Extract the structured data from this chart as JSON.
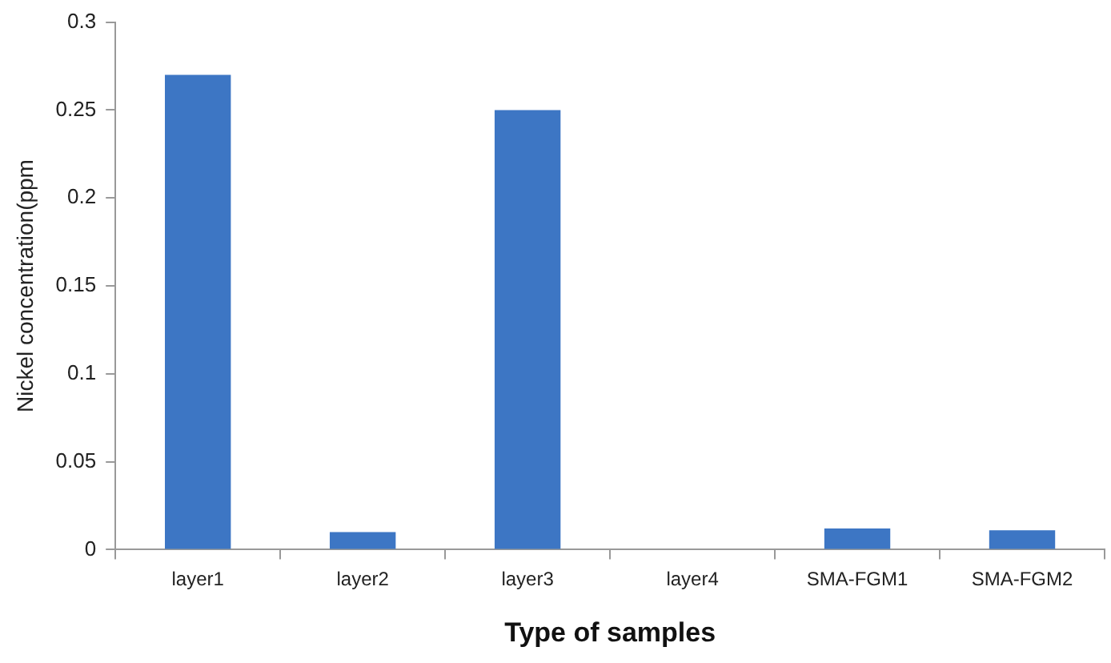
{
  "chart_data": {
    "type": "bar",
    "xlabel": "Type of samples",
    "ylabel": "Nickel concentration(ppm",
    "categories": [
      "layer1",
      "layer2",
      "layer3",
      "layer4",
      "SMA-FGM1",
      "SMA-FGM2"
    ],
    "values": [
      0.27,
      0.01,
      0.25,
      0,
      0.012,
      0.011
    ],
    "color": "#3d76c4",
    "ylim": [
      0,
      0.3
    ],
    "yticks": [
      0,
      0.05,
      0.1,
      0.15,
      0.2,
      0.25,
      0.3
    ],
    "grid": false,
    "legend": false
  }
}
